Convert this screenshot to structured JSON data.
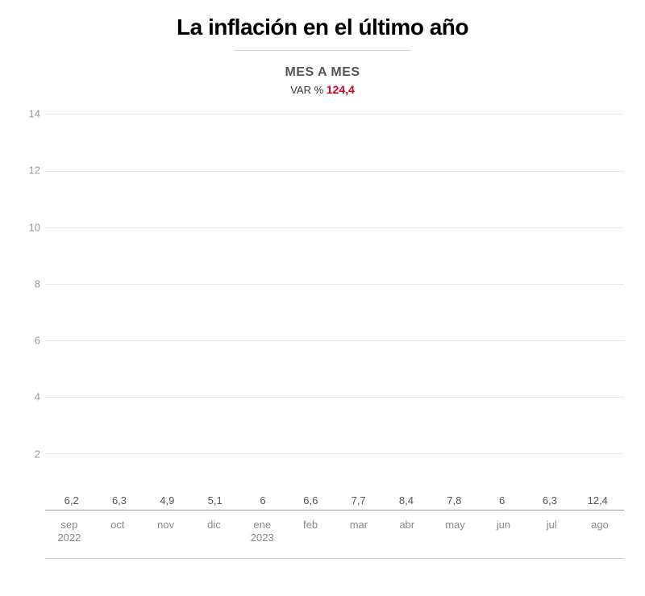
{
  "title": "La inflación en el último año",
  "subtitle": "MES A MES",
  "var_label": "VAR %",
  "var_value": "124,4",
  "chart": {
    "type": "bar",
    "y_min": 0,
    "y_max": 14,
    "y_ticks": [
      2,
      4,
      6,
      8,
      10,
      12,
      14
    ],
    "bar_color": "#ee6b6b",
    "highlight_color": "#a8002c",
    "grid_color": "#e6e6e6",
    "axis_line_color": "#999999",
    "tick_text_color": "#999999",
    "label_text_color": "#555555",
    "bar_width_ratio": 0.78,
    "label_fontsize": 13,
    "categories": [
      {
        "month": "sep",
        "year": "2022",
        "value": 6.2,
        "display": "6,2",
        "highlight": false
      },
      {
        "month": "oct",
        "year": "",
        "value": 6.3,
        "display": "6,3",
        "highlight": false
      },
      {
        "month": "nov",
        "year": "",
        "value": 4.9,
        "display": "4,9",
        "highlight": false
      },
      {
        "month": "dic",
        "year": "",
        "value": 5.1,
        "display": "5,1",
        "highlight": false
      },
      {
        "month": "ene",
        "year": "2023",
        "value": 6.0,
        "display": "6",
        "highlight": false
      },
      {
        "month": "feb",
        "year": "",
        "value": 6.6,
        "display": "6,6",
        "highlight": false
      },
      {
        "month": "mar",
        "year": "",
        "value": 7.7,
        "display": "7,7",
        "highlight": false
      },
      {
        "month": "abr",
        "year": "",
        "value": 8.4,
        "display": "8,4",
        "highlight": false
      },
      {
        "month": "may",
        "year": "",
        "value": 7.8,
        "display": "7,8",
        "highlight": false
      },
      {
        "month": "jun",
        "year": "",
        "value": 6.0,
        "display": "6",
        "highlight": false
      },
      {
        "month": "jul",
        "year": "",
        "value": 6.3,
        "display": "6,3",
        "highlight": false
      },
      {
        "month": "ago",
        "year": "",
        "value": 12.4,
        "display": "12,4",
        "highlight": true
      }
    ]
  }
}
